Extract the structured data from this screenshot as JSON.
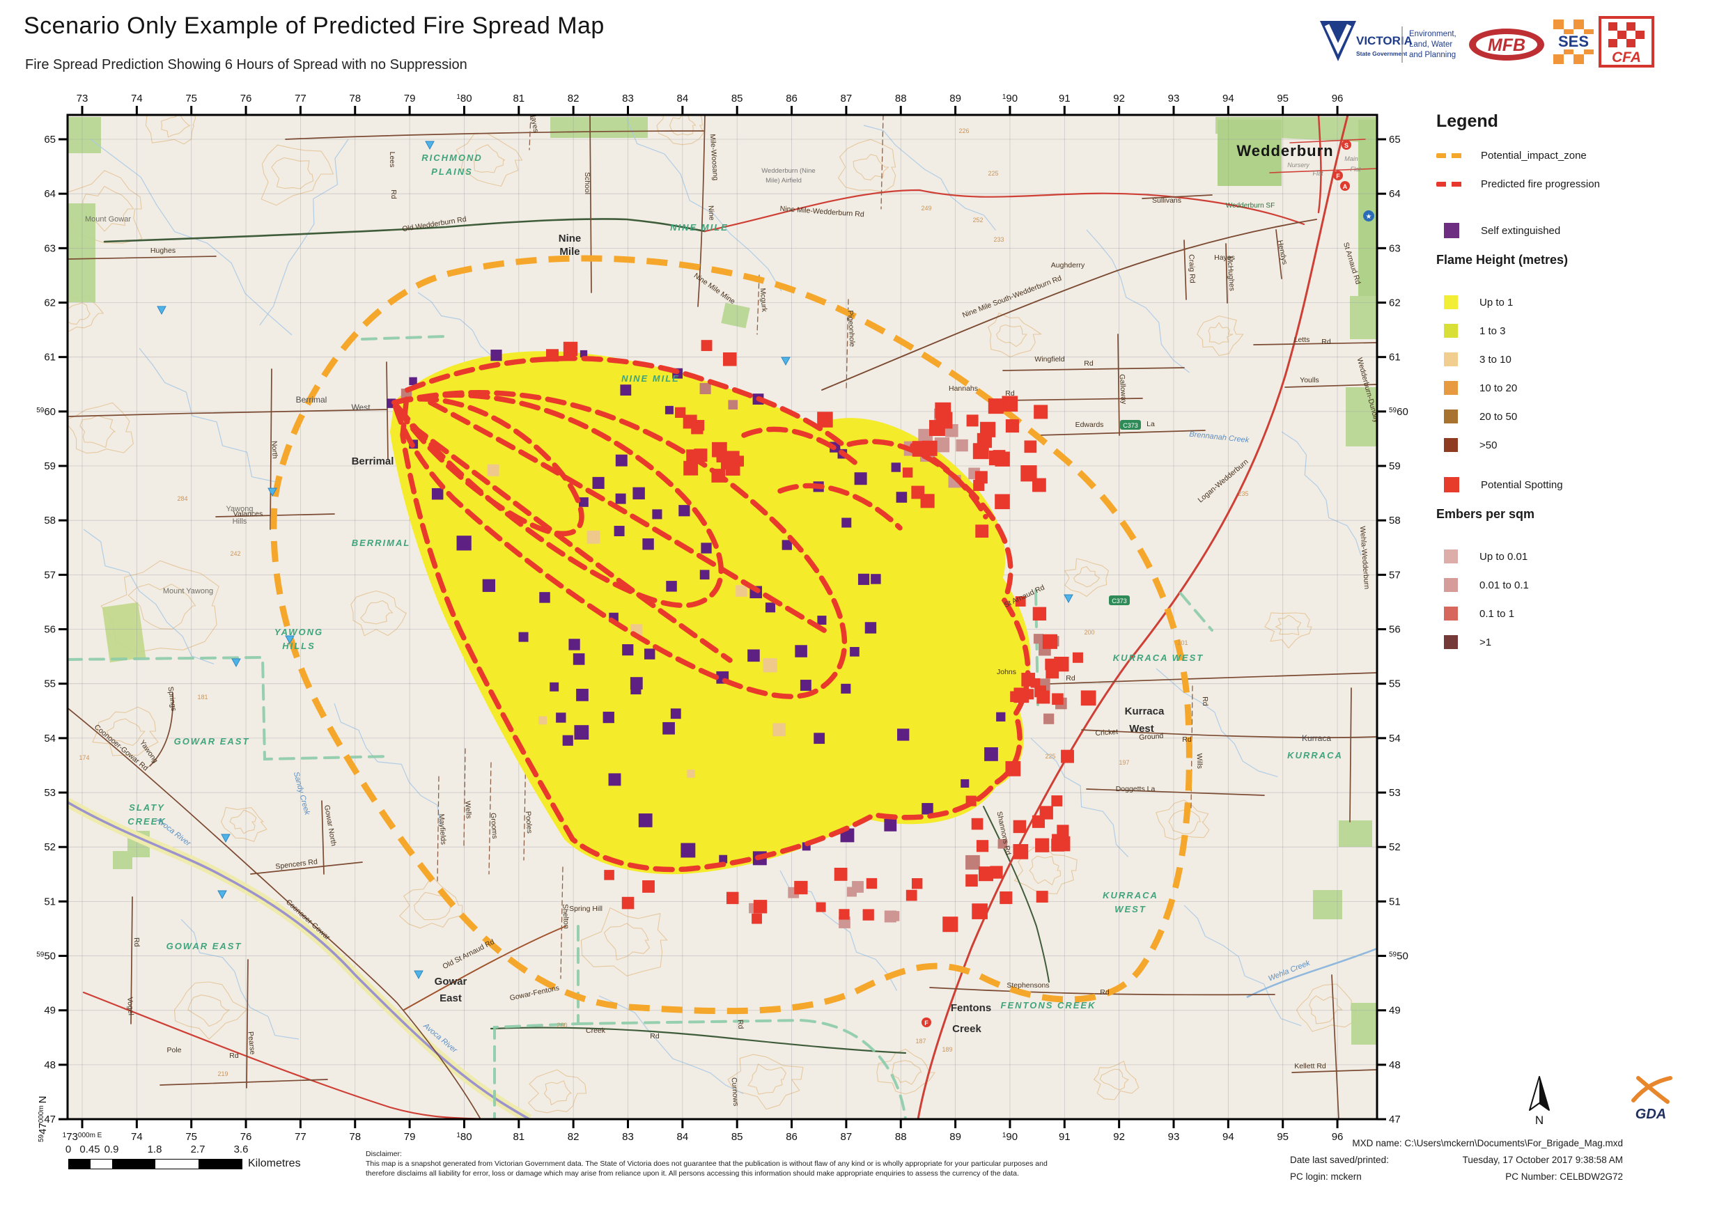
{
  "header": {
    "title": "Scenario Only Example of Predicted Fire Spread Map",
    "subtitle": "Fire Spread Prediction Showing 6 Hours of Spread with no Suppression"
  },
  "logos": {
    "victoria": "VICTORIA",
    "victoria_sub": "State Government",
    "elwp": [
      "Environment,",
      "Land, Water",
      "and Planning"
    ],
    "mfb": "MFB",
    "ses": "SES",
    "cfa": "CFA",
    "gda": "GDA",
    "north": "N"
  },
  "legend": {
    "title": "Legend",
    "impact_zone": {
      "label": "Potential_impact_zone",
      "color": "#F5A72B"
    },
    "progression": {
      "label": "Predicted fire progression",
      "color": "#E8372C"
    },
    "self_extinguished": {
      "label": "Self extinguished",
      "color": "#6E2E82"
    },
    "flame_heading": "Flame Height (metres)",
    "flame_items": [
      {
        "label": "Up to 1",
        "color": "#F2EE35"
      },
      {
        "label": "1 to 3",
        "color": "#D8E038"
      },
      {
        "label": "3 to 10",
        "color": "#F1CD90"
      },
      {
        "label": "10 to 20",
        "color": "#E89A40"
      },
      {
        "label": "20 to 50",
        "color": "#A8732E"
      },
      {
        "label": ">50",
        "color": "#8F3B22"
      }
    ],
    "spotting": {
      "label": "Potential Spotting",
      "color": "#E73B2B"
    },
    "embers_heading": "Embers per sqm",
    "ember_items": [
      {
        "label": "Up to 0.01",
        "color": "#DDADAA"
      },
      {
        "label": "0.01 to 0.1",
        "color": "#D59C9A"
      },
      {
        "label": "0.1 to 1",
        "color": "#D7665C"
      },
      {
        "label": ">1",
        "color": "#753A38"
      }
    ]
  },
  "scalebar": {
    "values": [
      "0",
      "0.45",
      "0.9",
      "1.8",
      "2.7",
      "3.6"
    ],
    "unit": "Kilometres"
  },
  "disclaimer": {
    "heading": "Disclaimer:",
    "line1": "This map is a snapshot generated from Victorian Government data. The State of Victoria does not guarantee that the publication is without flaw of any kind or is wholly appropriate for your particular purposes and",
    "line2": "therefore disclaims all liability for error, loss or damage which may arise from reliance upon it. All persons accessing this information should make appropriate enquiries to assess the currency of the data."
  },
  "footer": {
    "mxd": "MXD name: C:\\Users\\mckern\\Documents\\For_Brigade_Mag.mxd",
    "date_label": "Date last saved/printed:",
    "date_value": "Tuesday, 17 October 2017 9:38:58 AM",
    "pc_login": "PC login: mckern",
    "pc_number": "PC Number: CELBDW2G72"
  },
  "map": {
    "shield": "C373",
    "top_ticks": [
      "73",
      "74",
      "75",
      "76",
      "77",
      "78",
      "79",
      {
        "p": "1",
        "v": "80"
      },
      "81",
      "82",
      "83",
      "84",
      "85",
      "86",
      "87",
      "88",
      "89",
      {
        "p": "1",
        "v": "90"
      },
      "91",
      "92",
      "93",
      "94",
      "95",
      "96"
    ],
    "bottom_ticks": [
      {
        "p": "1",
        "v": "73",
        "s": "000m E"
      },
      "74",
      "75",
      "76",
      "77",
      "78",
      "79",
      {
        "p": "1",
        "v": "80"
      },
      "81",
      "82",
      "83",
      "84",
      "85",
      "86",
      "87",
      "88",
      "89",
      {
        "p": "1",
        "v": "90"
      },
      "91",
      "92",
      "93",
      "94",
      "95",
      "96"
    ],
    "left_ticks": [
      "65",
      "64",
      "63",
      "62",
      "61",
      {
        "p": "59",
        "v": "60"
      },
      "59",
      "58",
      "57",
      "56",
      "55",
      "54",
      "53",
      "52",
      "51",
      {
        "p": "59",
        "v": "50"
      },
      "49",
      "48",
      "47"
    ],
    "right_ticks": [
      "65",
      "64",
      "63",
      "62",
      "61",
      {
        "p": "59",
        "v": "60"
      },
      "59",
      "58",
      "57",
      "56",
      "55",
      "54",
      "53",
      "52",
      "51",
      {
        "p": "59",
        "v": "50"
      },
      "49",
      "48",
      "47"
    ],
    "corner_n": {
      "p": "59",
      "v": "47",
      "s": "000m ",
      "n": "N"
    },
    "labels": [
      [
        "Wedderburn",
        1845,
        224,
        "townlg"
      ],
      [
        "Nursery",
        1864,
        240,
        "tiny"
      ],
      [
        "Flat",
        1892,
        252,
        "tiny"
      ],
      [
        "Main",
        1940,
        231,
        "tiny"
      ],
      [
        "Flat",
        1946,
        246,
        "tiny"
      ],
      [
        "Wedderburn SF",
        1795,
        298,
        "sf"
      ],
      [
        "Nine",
        818,
        347,
        "town"
      ],
      [
        "Mile",
        818,
        366,
        "town"
      ],
      [
        "Wedderburn (Nine",
        1132,
        248,
        "tiny2"
      ],
      [
        "Mile) Airfield",
        1125,
        262,
        "tiny2"
      ],
      [
        "Berrimal",
        447,
        578,
        "townsm"
      ],
      [
        "West",
        518,
        589,
        "townsm"
      ],
      [
        "Berrimal",
        535,
        667,
        "town"
      ],
      [
        "Gowar",
        647,
        1414,
        "town"
      ],
      [
        "East",
        647,
        1438,
        "town"
      ],
      [
        "Kurraca",
        1643,
        1026,
        "town"
      ],
      [
        "West",
        1639,
        1051,
        "town"
      ],
      [
        "Fentons",
        1394,
        1452,
        "town"
      ],
      [
        "Creek",
        1388,
        1482,
        "town"
      ],
      [
        "Kurraca",
        1890,
        1064,
        "townsm"
      ],
      [
        "Hughes",
        234,
        363,
        "road"
      ],
      [
        "Mount Gowar",
        155,
        318,
        "hill"
      ],
      [
        "Yawong",
        344,
        734,
        "hill"
      ],
      [
        "Hills",
        344,
        752,
        "hill"
      ],
      [
        "Mount Yawong",
        270,
        852,
        "hill"
      ],
      [
        "RICHMOND",
        649,
        231,
        "area"
      ],
      [
        "PLAINS",
        649,
        251,
        "area"
      ],
      [
        "NINE MILE",
        1004,
        331,
        "area"
      ],
      [
        "NINE MILE",
        934,
        548,
        "area"
      ],
      [
        "YAWONG",
        429,
        912,
        "area"
      ],
      [
        "HILLS",
        429,
        932,
        "area"
      ],
      [
        "GOWAR EAST",
        304,
        1069,
        "area"
      ],
      [
        "GOWAR EAST",
        293,
        1363,
        "area"
      ],
      [
        "SLATY",
        211,
        1164,
        "area"
      ],
      [
        "CREEK",
        211,
        1184,
        "area"
      ],
      [
        "BERRIMAL",
        547,
        784,
        "area"
      ],
      [
        "KURRACA WEST",
        1663,
        949,
        "area"
      ],
      [
        "KURRACA",
        1623,
        1290,
        "area"
      ],
      [
        "WEST",
        1623,
        1310,
        "area"
      ],
      [
        "FENTONS CREEK",
        1505,
        1448,
        "area"
      ],
      [
        "KURRACA",
        1888,
        1089,
        "area"
      ],
      [
        "Avoca River",
        247,
        1197,
        "creek",
        38
      ],
      [
        "Avoca River",
        630,
        1493,
        "creek",
        40
      ],
      [
        "Wehla Creek",
        1852,
        1397,
        "creek",
        -22
      ],
      [
        "Brennanah Creek",
        1750,
        631,
        "creek",
        6
      ],
      [
        "Sandy Creek",
        430,
        1140,
        "creek",
        75
      ],
      [
        "Old Wedderburn Rd",
        624,
        325,
        "road",
        -9
      ],
      [
        "Nine Mile-Wedderburn Rd",
        1180,
        307,
        "road",
        4
      ],
      [
        "Nine Mile South-Wedderburn Rd",
        1454,
        429,
        "road",
        -21
      ],
      [
        "Lees",
        560,
        229,
        "road",
        90
      ],
      [
        "Rd",
        562,
        279,
        "road",
        90
      ],
      [
        "School",
        840,
        263,
        "road",
        90
      ],
      [
        "Mile-Woosang",
        1022,
        226,
        "road",
        86
      ],
      [
        "Nine",
        1018,
        306,
        "road",
        86
      ],
      [
        "Nine Mile Mine",
        1024,
        417,
        "road",
        35
      ],
      [
        "St Arnaud Rd",
        1938,
        379,
        "road",
        73
      ],
      [
        "St Arnaud Rd",
        1472,
        859,
        "road",
        -25
      ],
      [
        "Logan-Wedderburn",
        1758,
        693,
        "road",
        -40
      ],
      [
        "Edwards",
        1564,
        613,
        "road"
      ],
      [
        "La",
        1652,
        612,
        "road"
      ],
      [
        "Hannahs",
        1383,
        561,
        "road"
      ],
      [
        "Rd",
        1450,
        568,
        "road"
      ],
      [
        "Wingfield",
        1507,
        519,
        "road"
      ],
      [
        "Rd",
        1563,
        525,
        "road"
      ],
      [
        "Galloway",
        1609,
        559,
        "road",
        86
      ],
      [
        "Aughderry",
        1533,
        384,
        "road"
      ],
      [
        "Sullivans",
        1675,
        291,
        "road"
      ],
      [
        "Craig Rd",
        1708,
        386,
        "road",
        88
      ],
      [
        "McHughes",
        1764,
        393,
        "road",
        86
      ],
      [
        "Hendys",
        1838,
        363,
        "road",
        78
      ],
      [
        "Hayes",
        764,
        176,
        "road",
        80
      ],
      [
        "Hayes",
        1758,
        373,
        "road"
      ],
      [
        "Letts",
        1869,
        491,
        "road"
      ],
      [
        "Rd",
        1904,
        494,
        "road"
      ],
      [
        "Youlls",
        1880,
        549,
        "road"
      ],
      [
        "Johns",
        1445,
        968,
        "road"
      ],
      [
        "Rd",
        1537,
        977,
        "road"
      ],
      [
        "Cricket",
        1589,
        1055,
        "road",
        -4
      ],
      [
        "Ground",
        1653,
        1061,
        "road",
        -4
      ],
      [
        "Rd",
        1704,
        1065,
        "road"
      ],
      [
        "Doggetts La",
        1630,
        1136,
        "road"
      ],
      [
        "Wills",
        1719,
        1093,
        "road",
        88
      ],
      [
        "Rd",
        1727,
        1007,
        "road",
        88
      ],
      [
        "Shannons Rd",
        1438,
        1197,
        "road",
        78
      ],
      [
        "Stephensons",
        1476,
        1418,
        "road"
      ],
      [
        "Rd",
        1586,
        1428,
        "road"
      ],
      [
        "Curnows",
        1052,
        1568,
        "road",
        86
      ],
      [
        "Rd",
        1060,
        1471,
        "road",
        86
      ],
      [
        "Gowar-Fentons",
        768,
        1429,
        "road",
        -12
      ],
      [
        "Creek",
        855,
        1483,
        "road"
      ],
      [
        "Rd",
        940,
        1491,
        "road"
      ],
      [
        "Old St Arnaud Rd",
        674,
        1373,
        "road",
        -27
      ],
      [
        "Spencers Rd",
        426,
        1244,
        "road",
        -7
      ],
      [
        "Coonooer-Gowar Rd",
        172,
        1076,
        "road",
        40
      ],
      [
        "Coonooer-Gowar",
        440,
        1323,
        "road",
        42
      ],
      [
        "Gowar North",
        471,
        1186,
        "road",
        80
      ],
      [
        "Vogel",
        184,
        1445,
        "road",
        87
      ],
      [
        "Rd",
        193,
        1353,
        "road",
        87
      ],
      [
        "Pole",
        250,
        1511,
        "road"
      ],
      [
        "Rd",
        336,
        1519,
        "road"
      ],
      [
        "Pearse",
        358,
        1498,
        "road",
        85
      ],
      [
        "Springs",
        244,
        1004,
        "road",
        82
      ],
      [
        "Yawong",
        211,
        1081,
        "road",
        55
      ],
      [
        "Wedderburn-Dunolly",
        1961,
        561,
        "road",
        75
      ],
      [
        "Wehla-Wedderburn",
        1956,
        801,
        "road",
        86
      ],
      [
        "Kellett Rd",
        1881,
        1534,
        "road"
      ],
      [
        "North",
        391,
        646,
        "road",
        87
      ],
      [
        "Grooms",
        706,
        1186,
        "road",
        86
      ],
      [
        "Pooles",
        756,
        1181,
        "road",
        86
      ],
      [
        "Wells",
        669,
        1163,
        "road",
        86
      ],
      [
        "Mayfields",
        632,
        1191,
        "road",
        86
      ],
      [
        "Shelton",
        809,
        1316,
        "road",
        87
      ],
      [
        "Spring Hill",
        841,
        1308,
        "road"
      ],
      [
        "Valances",
        356,
        741,
        "road"
      ],
      [
        "Pigeonhole",
        1219,
        472,
        "road",
        87
      ],
      [
        "Mcgurk",
        1093,
        431,
        "road",
        86
      ],
      [
        "226",
        1384,
        191,
        "cont"
      ],
      [
        "225",
        1426,
        252,
        "cont"
      ],
      [
        "249",
        1330,
        302,
        "cont"
      ],
      [
        "252",
        1404,
        319,
        "cont"
      ],
      [
        "233",
        1434,
        347,
        "cont"
      ],
      [
        "284",
        262,
        719,
        "cont"
      ],
      [
        "242",
        338,
        798,
        "cont"
      ],
      [
        "181",
        291,
        1004,
        "cont"
      ],
      [
        "174",
        121,
        1091,
        "cont"
      ],
      [
        "260",
        807,
        1475,
        "cont"
      ],
      [
        "225",
        1508,
        1089,
        "cont"
      ],
      [
        "197",
        1614,
        1098,
        "cont"
      ],
      [
        "201",
        1698,
        926,
        "cont"
      ],
      [
        "200",
        1564,
        911,
        "cont"
      ],
      [
        "235",
        1785,
        712,
        "cont"
      ],
      [
        "219",
        320,
        1545,
        "cont"
      ],
      [
        "187",
        1322,
        1498,
        "cont"
      ],
      [
        "189",
        1360,
        1510,
        "cont"
      ]
    ]
  }
}
